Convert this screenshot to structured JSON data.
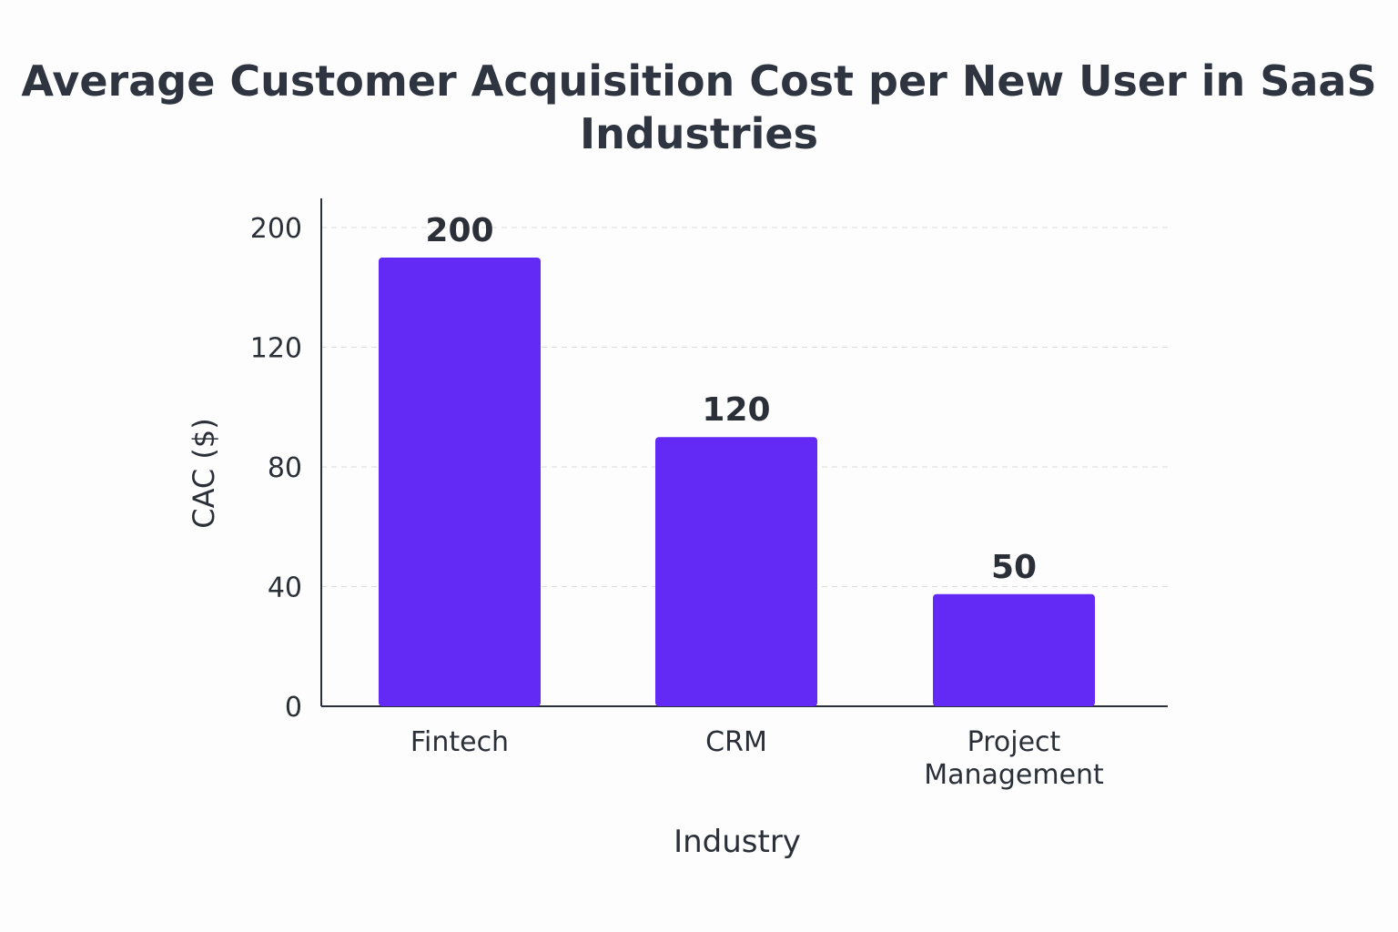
{
  "chart_data": {
    "type": "bar",
    "title": "Average Customer Acquisition Cost per New User in SaaS Industries",
    "xlabel": "Industry",
    "ylabel": "CAC ($)",
    "categories": [
      "Fintech",
      "CRM",
      "Project Management"
    ],
    "values": [
      200,
      120,
      50
    ],
    "data_labels": [
      "200",
      "120",
      "50"
    ],
    "y_tick_labels": [
      "0",
      "40",
      "80",
      "120",
      "200"
    ],
    "grid": "horizontal dashed",
    "legend": "none",
    "bar_color": "#632AF6",
    "axis_color": "#2b2f38",
    "grid_color": "#dcdcdc"
  }
}
